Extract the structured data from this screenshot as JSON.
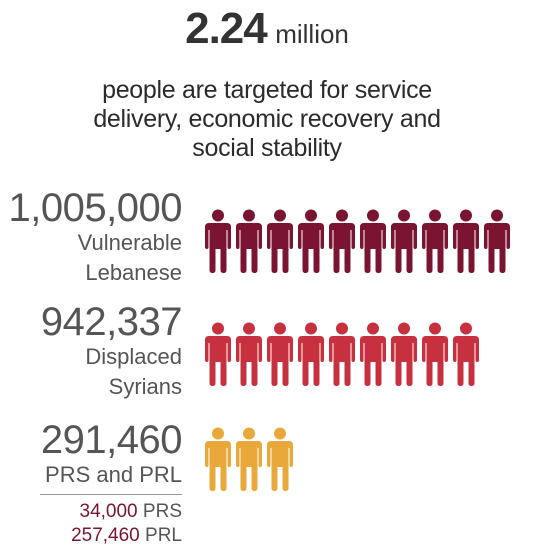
{
  "headline": {
    "value": "2.24",
    "unit": "million"
  },
  "subhead": {
    "lines": [
      "people are targeted for service",
      "delivery, economic recovery and",
      "social stability"
    ]
  },
  "colors": {
    "lebanese": "#7a1430",
    "syrians": "#c7303e",
    "prs_prl": "#e8a83a"
  },
  "groups": {
    "lebanese": {
      "value": "1,005,000",
      "label_line1": "Vulnerable",
      "label_line2": "Lebanese",
      "icon_count": 10,
      "icon": "person-icon"
    },
    "syrians": {
      "value": "942,337",
      "label_line1": "Displaced",
      "label_line2": "Syrians",
      "icon_count": 9,
      "icon": "person-icon"
    },
    "prs_prl": {
      "value": "291,460",
      "label": "PRS and PRL",
      "icon_count": 3,
      "icon": "person-icon",
      "breakdown": [
        {
          "value": "34,000",
          "label": "PRS"
        },
        {
          "value": "257,460",
          "label": "PRL"
        }
      ]
    }
  }
}
